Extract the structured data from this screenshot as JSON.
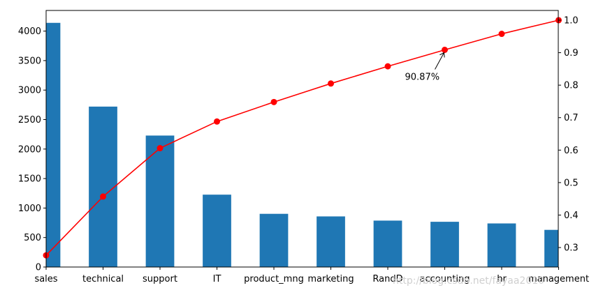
{
  "chart_data": {
    "type": "bar",
    "categories": [
      "sales",
      "technical",
      "support",
      "IT",
      "product_mng",
      "marketing",
      "RandD",
      "accounting",
      "hr",
      "management"
    ],
    "series": [
      {
        "type": "bar",
        "axis": "left",
        "color": "#1f77b4",
        "values": [
          4140,
          2720,
          2229,
          1227,
          902,
          858,
          787,
          767,
          739,
          630
        ]
      },
      {
        "type": "line",
        "axis": "right",
        "color": "#ff0000",
        "marker": "circle",
        "values": [
          0.276,
          0.457,
          0.606,
          0.688,
          0.748,
          0.805,
          0.858,
          0.9087,
          0.958,
          1.0
        ]
      }
    ],
    "ylim_left": [
      0,
      4350
    ],
    "yticks_left": [
      "0",
      "500",
      "1000",
      "1500",
      "2000",
      "2500",
      "3000",
      "3500",
      "4000"
    ],
    "ylim_right": [
      0.24,
      1.03
    ],
    "yticks_right": [
      "0.3",
      "0.4",
      "0.5",
      "0.6",
      "0.7",
      "0.8",
      "0.9",
      "1.0"
    ],
    "annotation": {
      "text": "90.87%",
      "category": "accounting",
      "value": 0.9087
    },
    "grid": false,
    "watermark": "http://blog.csdn.net/fayaa2010"
  }
}
